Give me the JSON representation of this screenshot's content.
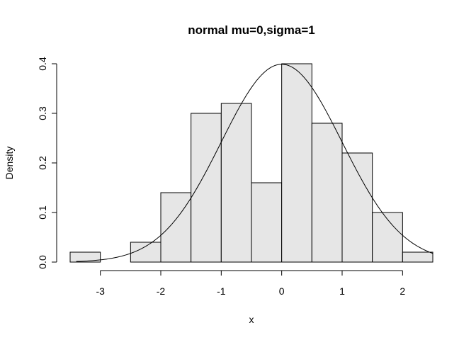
{
  "chart_data": {
    "type": "bar",
    "title": "normal mu=0,sigma=1",
    "xlabel": "x",
    "ylabel": "Density",
    "bins": [
      {
        "left": -3.5,
        "right": -3.0,
        "density": 0.02
      },
      {
        "left": -3.0,
        "right": -2.5,
        "density": 0.0
      },
      {
        "left": -2.5,
        "right": -2.0,
        "density": 0.04
      },
      {
        "left": -2.0,
        "right": -1.5,
        "density": 0.14
      },
      {
        "left": -1.5,
        "right": -1.0,
        "density": 0.3
      },
      {
        "left": -1.0,
        "right": -0.5,
        "density": 0.32
      },
      {
        "left": -0.5,
        "right": 0.0,
        "density": 0.16
      },
      {
        "left": 0.0,
        "right": 0.5,
        "density": 0.4
      },
      {
        "left": 0.5,
        "right": 1.0,
        "density": 0.28
      },
      {
        "left": 1.0,
        "right": 1.5,
        "density": 0.22
      },
      {
        "left": 1.5,
        "right": 2.0,
        "density": 0.1
      },
      {
        "left": 2.0,
        "right": 2.5,
        "density": 0.02
      }
    ],
    "density_curve": {
      "distribution": "normal",
      "mu": 0,
      "sigma": 1,
      "x_range": [
        -3.4,
        2.5
      ]
    },
    "x_ticks": [
      -3,
      -2,
      -1,
      0,
      1,
      2
    ],
    "x_tick_labels": [
      "-3",
      "-2",
      "-1",
      "0",
      "1",
      "2"
    ],
    "y_ticks": [
      0.0,
      0.1,
      0.2,
      0.3,
      0.4
    ],
    "y_tick_labels": [
      "0.0",
      "0.1",
      "0.2",
      "0.3",
      "0.4"
    ],
    "xlim": [
      -3.5,
      2.5
    ],
    "ylim": [
      0,
      0.4
    ],
    "grid": false,
    "colors": {
      "bar_fill": "#e6e6e6",
      "bar_stroke": "#000000",
      "curve": "#000000"
    }
  }
}
